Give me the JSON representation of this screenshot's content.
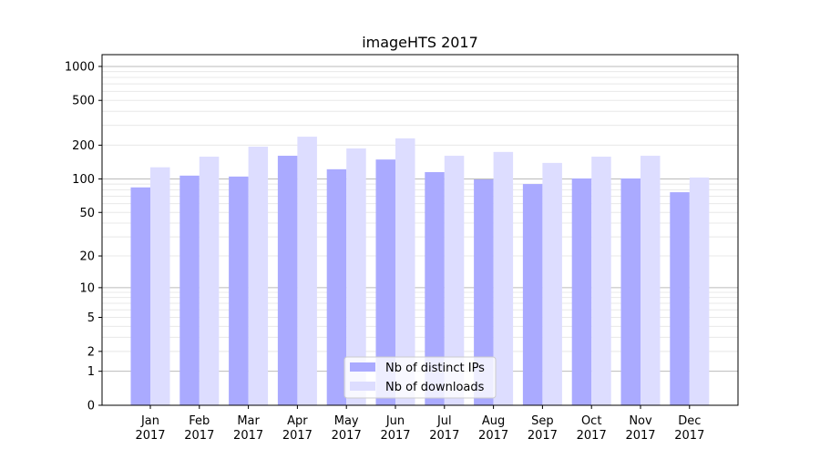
{
  "chart_data": {
    "type": "bar",
    "title": "imageHTS 2017",
    "xlabel": "",
    "ylabel": "",
    "yscale": "log(1+y)",
    "ylim": [
      0,
      1300
    ],
    "yticks": [
      0,
      1,
      2,
      5,
      10,
      20,
      50,
      100,
      200,
      500,
      1000
    ],
    "grid": true,
    "legend_placement": "bottom-center",
    "categories": [
      "Jan\n2017",
      "Feb\n2017",
      "Mar\n2017",
      "Apr\n2017",
      "May\n2017",
      "Jun\n2017",
      "Jul\n2017",
      "Aug\n2017",
      "Sep\n2017",
      "Oct\n2017",
      "Nov\n2017",
      "Dec\n2017"
    ],
    "series": [
      {
        "name": "Nb of distinct IPs",
        "color": "#aaaaff",
        "values": [
          84,
          107,
          105,
          161,
          122,
          149,
          115,
          99,
          90,
          101,
          101,
          76
        ]
      },
      {
        "name": "Nb of downloads",
        "color": "#ddddff",
        "values": [
          127,
          158,
          194,
          238,
          187,
          230,
          161,
          174,
          139,
          158,
          161,
          103
        ]
      }
    ]
  }
}
